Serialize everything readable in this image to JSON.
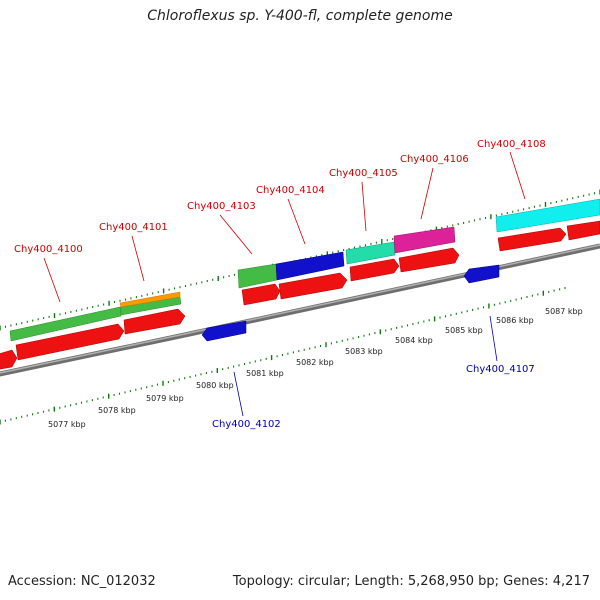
{
  "title": "Chloroflexus sp. Y-400-fl, complete genome",
  "footer": {
    "accession": "Accession: NC_012032",
    "stats": "Topology: circular; Length: 5,268,950 bp; Genes: 4,217"
  },
  "colors": {
    "forward_gene": "#ee1111",
    "reverse_gene": "#1111cc",
    "label_forward": "#cc0000",
    "label_reverse": "#0000aa",
    "tick_green": "#117711",
    "backbone": "#888888",
    "green_feature": "#44bb44",
    "orange_feature": "#ff9900",
    "blue_feature": "#1111cc",
    "teal_feature": "#22ddaa",
    "magenta_feature": "#dd2299",
    "cyan_feature": "#11eeee"
  },
  "kbp_labels": [
    "5077 kbp",
    "5078 kbp",
    "5079 kbp",
    "5080 kbp",
    "5081 kbp",
    "5082 kbp",
    "5083 kbp",
    "5084 kbp",
    "5085 kbp",
    "5086 kbp",
    "5087 kbp"
  ],
  "gene_labels_forward": [
    "Chy400_4100",
    "Chy400_4101",
    "Chy400_4103",
    "Chy400_4104",
    "Chy400_4105",
    "Chy400_4106",
    "Chy400_4108"
  ],
  "gene_labels_reverse": [
    "Chy400_4102",
    "Chy400_4107"
  ]
}
